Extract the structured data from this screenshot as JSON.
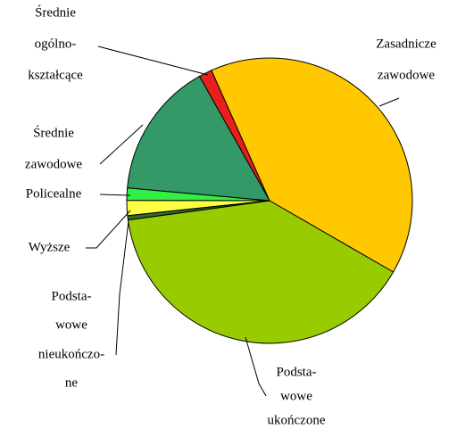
{
  "chart_data": {
    "type": "pie",
    "categories": [
      [
        "Średnie",
        "ogólno-",
        "kształcące"
      ],
      [
        "Zasadnicze",
        "zawodowe"
      ],
      [
        "Podsta-",
        "wowe",
        "ukończone"
      ],
      [
        "Podsta-",
        "wowe",
        "nieukończo-",
        "ne"
      ],
      [
        "Wyższe"
      ],
      [
        "Policealne"
      ],
      [
        "Średnie",
        "zawodowe"
      ]
    ],
    "values": [
      1.5,
      40,
      39.5,
      0.5,
      1.7,
      1.4,
      15.4
    ],
    "colors": [
      "#e8201c",
      "#ffc800",
      "#99cc00",
      "#336633",
      "#ffff44",
      "#33ee44",
      "#339966"
    ]
  }
}
